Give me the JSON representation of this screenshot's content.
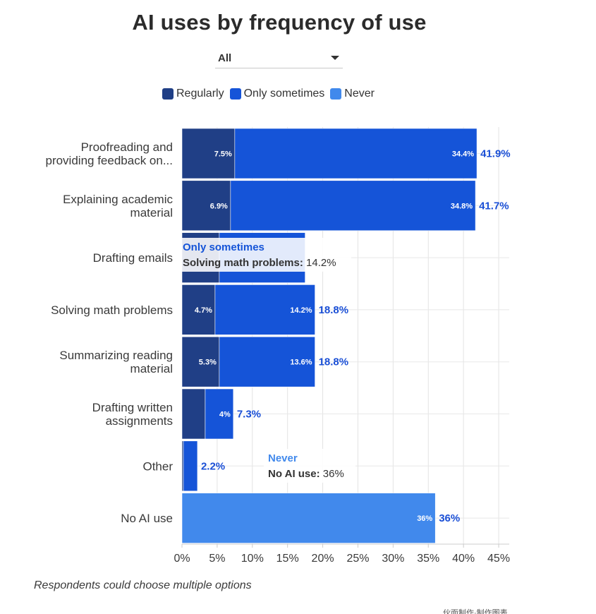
{
  "page": {
    "title": "AI uses by frequency of use",
    "filter": {
      "selected": "All"
    },
    "footnote": "Respondents could choose multiple options",
    "footer_text": "伙面制作·制作图表"
  },
  "tooltips": [
    {
      "series": "Only sometimes",
      "label": "Solving math problems:",
      "value": "14.2%"
    },
    {
      "series": "Never",
      "label": "No AI use:",
      "value": "36%"
    }
  ],
  "chart_data": {
    "type": "bar",
    "orientation": "horizontal",
    "stacked": true,
    "title": "AI uses by frequency of use",
    "xlabel": "",
    "ylabel": "",
    "categories": [
      [
        "Proofreading and",
        "providing feedback on..."
      ],
      [
        "Explaining academic",
        "material"
      ],
      [
        "Drafting emails"
      ],
      [
        "Solving math problems"
      ],
      [
        "Summarizing reading",
        "material"
      ],
      [
        "Drafting written",
        "assignments"
      ],
      [
        "Other"
      ],
      [
        "No AI use"
      ]
    ],
    "series": [
      {
        "name": "Regularly",
        "color": "#203f86",
        "values": [
          7.5,
          6.9,
          5.3,
          4.7,
          5.3,
          3.3,
          0.2,
          0
        ]
      },
      {
        "name": "Only sometimes",
        "color": "#1554d8",
        "values": [
          34.4,
          34.8,
          12.2,
          14.2,
          13.6,
          4,
          2.0,
          0
        ]
      },
      {
        "name": "Never",
        "color": "#4189ec",
        "values": [
          0,
          0,
          0,
          0,
          0,
          0,
          0,
          36
        ]
      }
    ],
    "segment_labels": [
      [
        "7.5%",
        "34.4%",
        ""
      ],
      [
        "6.9%",
        "34.8%",
        ""
      ],
      [
        "",
        "",
        ""
      ],
      [
        "4.7%",
        "14.2%",
        ""
      ],
      [
        "5.3%",
        "13.6%",
        ""
      ],
      [
        "",
        "4%",
        ""
      ],
      [
        "",
        "",
        ""
      ],
      [
        "",
        "",
        "36%"
      ]
    ],
    "total_labels": [
      "41.9%",
      "41.7%",
      "",
      "18.8%",
      "18.8%",
      "7.3%",
      "2.2%",
      "36%"
    ],
    "x_ticks": [
      0,
      5,
      10,
      15,
      20,
      25,
      30,
      35,
      40,
      45
    ],
    "x_tick_labels": [
      "0%",
      "5%",
      "10%",
      "15%",
      "20%",
      "25%",
      "30%",
      "35%",
      "40%",
      "45%"
    ],
    "xlim": [
      0,
      46.5
    ],
    "grid": true,
    "legend_position": "top"
  }
}
